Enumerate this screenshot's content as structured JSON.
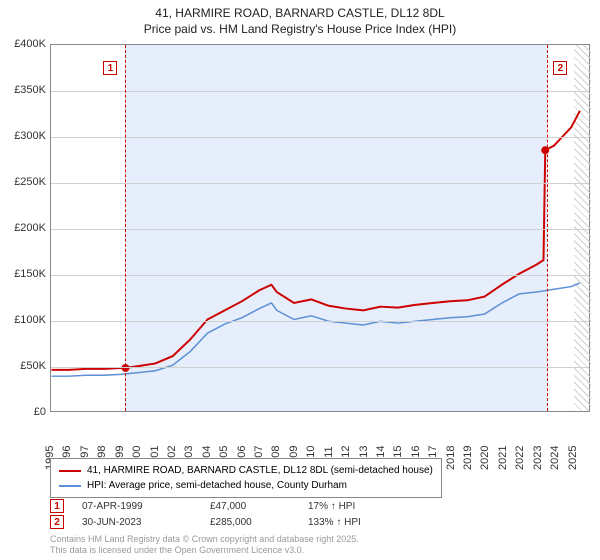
{
  "title_line1": "41, HARMIRE ROAD, BARNARD CASTLE, DL12 8DL",
  "title_line2": "Price paid vs. HM Land Registry's House Price Index (HPI)",
  "chart": {
    "type": "line",
    "background_color": "#ffffff",
    "plot_shaded_color": "#e6eefb",
    "grid_color": "#d0d0d0",
    "x_min": 1995,
    "x_max": 2026,
    "x_tick_step": 1,
    "x_labels": [
      "1995",
      "1996",
      "1997",
      "1998",
      "1999",
      "2000",
      "2001",
      "2002",
      "2003",
      "2004",
      "2005",
      "2006",
      "2007",
      "2008",
      "2009",
      "2010",
      "2011",
      "2012",
      "2013",
      "2014",
      "2015",
      "2016",
      "2017",
      "2018",
      "2019",
      "2020",
      "2021",
      "2022",
      "2023",
      "2024",
      "2025"
    ],
    "y_min": 0,
    "y_max": 400000,
    "y_tick_step": 50000,
    "y_labels": [
      "£0",
      "£50K",
      "£100K",
      "£150K",
      "£200K",
      "£250K",
      "£300K",
      "£350K",
      "£400K"
    ],
    "shaded_from_x": 1999.27,
    "shaded_to_x": 2023.5,
    "hatch_from_x": 2025.0,
    "hatch_to_x": 2026,
    "series": [
      {
        "name": "property_line",
        "label": "41, HARMIRE ROAD, BARNARD CASTLE, DL12 8DL (semi-detached house)",
        "color": "#cc0000",
        "line_width": 2,
        "points": [
          [
            1995,
            45000
          ],
          [
            1996,
            45000
          ],
          [
            1997,
            46000
          ],
          [
            1998,
            46000
          ],
          [
            1999,
            47000
          ],
          [
            1999.27,
            47000
          ],
          [
            2000,
            49000
          ],
          [
            2001,
            52000
          ],
          [
            2002,
            60000
          ],
          [
            2003,
            78000
          ],
          [
            2004,
            100000
          ],
          [
            2005,
            110000
          ],
          [
            2006,
            120000
          ],
          [
            2007,
            132000
          ],
          [
            2007.7,
            138000
          ],
          [
            2008,
            130000
          ],
          [
            2009,
            118000
          ],
          [
            2010,
            122000
          ],
          [
            2011,
            115000
          ],
          [
            2012,
            112000
          ],
          [
            2013,
            110000
          ],
          [
            2014,
            114000
          ],
          [
            2015,
            113000
          ],
          [
            2016,
            116000
          ],
          [
            2017,
            118000
          ],
          [
            2018,
            120000
          ],
          [
            2019,
            121000
          ],
          [
            2020,
            125000
          ],
          [
            2021,
            138000
          ],
          [
            2022,
            150000
          ],
          [
            2023,
            160000
          ],
          [
            2023.4,
            165000
          ],
          [
            2023.5,
            285000
          ],
          [
            2024,
            290000
          ],
          [
            2024.5,
            300000
          ],
          [
            2025,
            310000
          ],
          [
            2025.5,
            328000
          ]
        ]
      },
      {
        "name": "hpi_line",
        "label": "HPI: Average price, semi-detached house, County Durham",
        "color": "#5b8fd6",
        "line_width": 1.5,
        "points": [
          [
            1995,
            38000
          ],
          [
            1996,
            38000
          ],
          [
            1997,
            39000
          ],
          [
            1998,
            39000
          ],
          [
            1999,
            40000
          ],
          [
            2000,
            42000
          ],
          [
            2001,
            44000
          ],
          [
            2002,
            50000
          ],
          [
            2003,
            65000
          ],
          [
            2004,
            85000
          ],
          [
            2005,
            95000
          ],
          [
            2006,
            102000
          ],
          [
            2007,
            112000
          ],
          [
            2007.7,
            118000
          ],
          [
            2008,
            110000
          ],
          [
            2009,
            100000
          ],
          [
            2010,
            104000
          ],
          [
            2011,
            98000
          ],
          [
            2012,
            96000
          ],
          [
            2013,
            94000
          ],
          [
            2014,
            98000
          ],
          [
            2015,
            96000
          ],
          [
            2016,
            98000
          ],
          [
            2017,
            100000
          ],
          [
            2018,
            102000
          ],
          [
            2019,
            103000
          ],
          [
            2020,
            106000
          ],
          [
            2021,
            118000
          ],
          [
            2022,
            128000
          ],
          [
            2023,
            130000
          ],
          [
            2024,
            133000
          ],
          [
            2025,
            136000
          ],
          [
            2025.5,
            140000
          ]
        ]
      }
    ],
    "markers": [
      {
        "id": "1",
        "x": 1999.27,
        "y": 47000,
        "date": "07-APR-1999",
        "price": "£47,000",
        "pct": "17% ↑ HPI"
      },
      {
        "id": "2",
        "x": 2023.5,
        "y": 285000,
        "date": "30-JUN-2023",
        "price": "£285,000",
        "pct": "133% ↑ HPI"
      }
    ],
    "marker_dot_color": "#cc0000",
    "marker_dot_radius": 4
  },
  "legend": {
    "rows": [
      {
        "color": "#cc0000",
        "label": "41, HARMIRE ROAD, BARNARD CASTLE, DL12 8DL (semi-detached house)"
      },
      {
        "color": "#5b8fd6",
        "label": "HPI: Average price, semi-detached house, County Durham"
      }
    ]
  },
  "footer_line1": "Contains HM Land Registry data © Crown copyright and database right 2025.",
  "footer_line2": "This data is licensed under the Open Government Licence v3.0."
}
